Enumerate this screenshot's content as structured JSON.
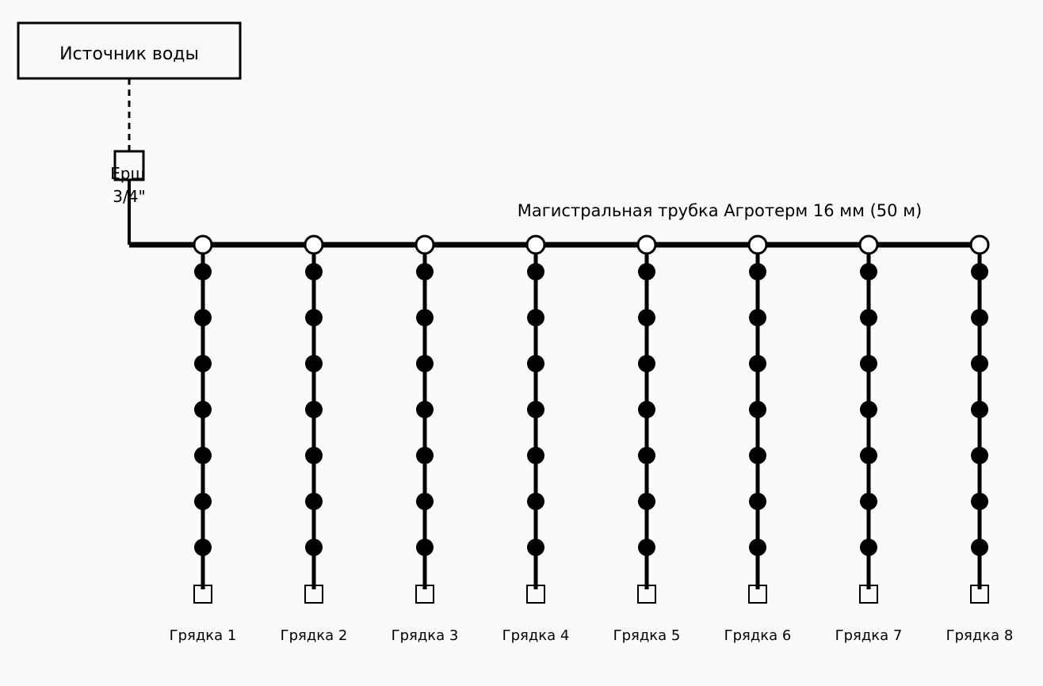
{
  "source": {
    "label": "Источник воды"
  },
  "fitting": {
    "line1": "Ерш",
    "line2": "3/4\""
  },
  "main_pipe": {
    "label": "Магистральная трубка Агротерм 16 мм (50 м)"
  },
  "beds": [
    {
      "label": "Грядка 1",
      "droppers": 7
    },
    {
      "label": "Грядка 2",
      "droppers": 7
    },
    {
      "label": "Грядка 3",
      "droppers": 7
    },
    {
      "label": "Грядка 4",
      "droppers": 7
    },
    {
      "label": "Грядка 5",
      "droppers": 7
    },
    {
      "label": "Грядка 6",
      "droppers": 7
    },
    {
      "label": "Грядка 7",
      "droppers": 7
    },
    {
      "label": "Грядка 8",
      "droppers": 7
    }
  ],
  "colors": {
    "line": "#000000",
    "background": "#fafafa",
    "connector_fill": "#ffffff"
  }
}
